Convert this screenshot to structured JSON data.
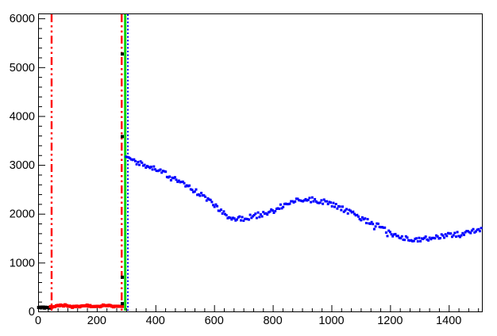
{
  "chart_data": {
    "type": "scatter",
    "title": "",
    "xlabel": "",
    "ylabel": "",
    "xlim": [
      0,
      1513
    ],
    "ylim": [
      0,
      6100
    ],
    "grid": false,
    "legend": "none",
    "background": "#ffffff",
    "frame_color": "#000000",
    "x_ticks": [
      0,
      200,
      400,
      600,
      800,
      1000,
      1200,
      1400
    ],
    "x_tick_labels": [
      "0",
      "200",
      "400",
      "600",
      "800",
      "1000",
      "1200",
      "1400"
    ],
    "x_minor_divisions": 6,
    "y_ticks": [
      0,
      1000,
      2000,
      3000,
      4000,
      5000,
      6000
    ],
    "y_tick_labels": [
      "0",
      "1000",
      "2000",
      "3000",
      "4000",
      "5000",
      "6000"
    ],
    "y_minor_divisions": 5,
    "series": [
      {
        "name": "black-baseline-histogram",
        "color": "#000000",
        "marker_px": 4,
        "sample_step": 4,
        "jitter": 22,
        "points": [
          [
            2,
            80
          ],
          [
            10,
            84
          ],
          [
            20,
            78
          ],
          [
            30,
            82
          ],
          [
            38,
            76
          ]
        ]
      },
      {
        "name": "red-low-histogram",
        "color": "#ff0000",
        "marker_px": 4,
        "sample_step": 5,
        "jitter": 26,
        "points": [
          [
            42,
            95
          ],
          [
            60,
            102
          ],
          [
            80,
            126
          ],
          [
            100,
            110
          ],
          [
            120,
            92
          ],
          [
            140,
            102
          ],
          [
            160,
            126
          ],
          [
            180,
            106
          ],
          [
            200,
            92
          ],
          [
            220,
            118
          ],
          [
            240,
            124
          ],
          [
            258,
            96
          ],
          [
            272,
            118
          ],
          [
            287,
            100
          ]
        ]
      },
      {
        "name": "blue-main-curve",
        "color": "#0000ff",
        "marker_px": 3,
        "sample_step": 4.5,
        "jitter": 105,
        "points": [
          [
            300,
            3160
          ],
          [
            308,
            3110
          ],
          [
            320,
            3075
          ],
          [
            340,
            3050
          ],
          [
            360,
            3000
          ],
          [
            385,
            2945
          ],
          [
            410,
            2890
          ],
          [
            435,
            2810
          ],
          [
            460,
            2720
          ],
          [
            485,
            2650
          ],
          [
            510,
            2560
          ],
          [
            535,
            2460
          ],
          [
            560,
            2370
          ],
          [
            585,
            2270
          ],
          [
            610,
            2120
          ],
          [
            630,
            2010
          ],
          [
            650,
            1930
          ],
          [
            680,
            1900
          ],
          [
            710,
            1905
          ],
          [
            740,
            1955
          ],
          [
            770,
            2010
          ],
          [
            800,
            2075
          ],
          [
            830,
            2160
          ],
          [
            860,
            2230
          ],
          [
            890,
            2280
          ],
          [
            910,
            2295
          ],
          [
            935,
            2285
          ],
          [
            960,
            2265
          ],
          [
            985,
            2230
          ],
          [
            1010,
            2175
          ],
          [
            1035,
            2110
          ],
          [
            1060,
            2040
          ],
          [
            1085,
            1960
          ],
          [
            1110,
            1880
          ],
          [
            1140,
            1805
          ],
          [
            1170,
            1725
          ],
          [
            1200,
            1615
          ],
          [
            1225,
            1535
          ],
          [
            1250,
            1500
          ],
          [
            1280,
            1475
          ],
          [
            1310,
            1470
          ],
          [
            1340,
            1495
          ],
          [
            1370,
            1525
          ],
          [
            1400,
            1560
          ],
          [
            1430,
            1585
          ],
          [
            1460,
            1615
          ],
          [
            1490,
            1655
          ],
          [
            1513,
            1685
          ]
        ]
      }
    ],
    "isolated_points": [
      {
        "series": "black",
        "x": 287,
        "y": 5270
      },
      {
        "series": "black",
        "x": 287,
        "y": 3580
      },
      {
        "series": "black",
        "x": 287,
        "y": 700
      },
      {
        "series": "black",
        "x": 287,
        "y": 160
      }
    ],
    "vlines": [
      {
        "x": 46,
        "color": "#ff0000",
        "style": "dash-dot-dot",
        "width": 2.4
      },
      {
        "x": 285,
        "color": "#ff0000",
        "style": "dash-dot-dot",
        "width": 2.4
      },
      {
        "x": 297,
        "color": "#00d400",
        "style": "solid",
        "width": 3
      },
      {
        "x": 306,
        "color": "#0000ff",
        "style": "dotted",
        "width": 2
      }
    ]
  }
}
